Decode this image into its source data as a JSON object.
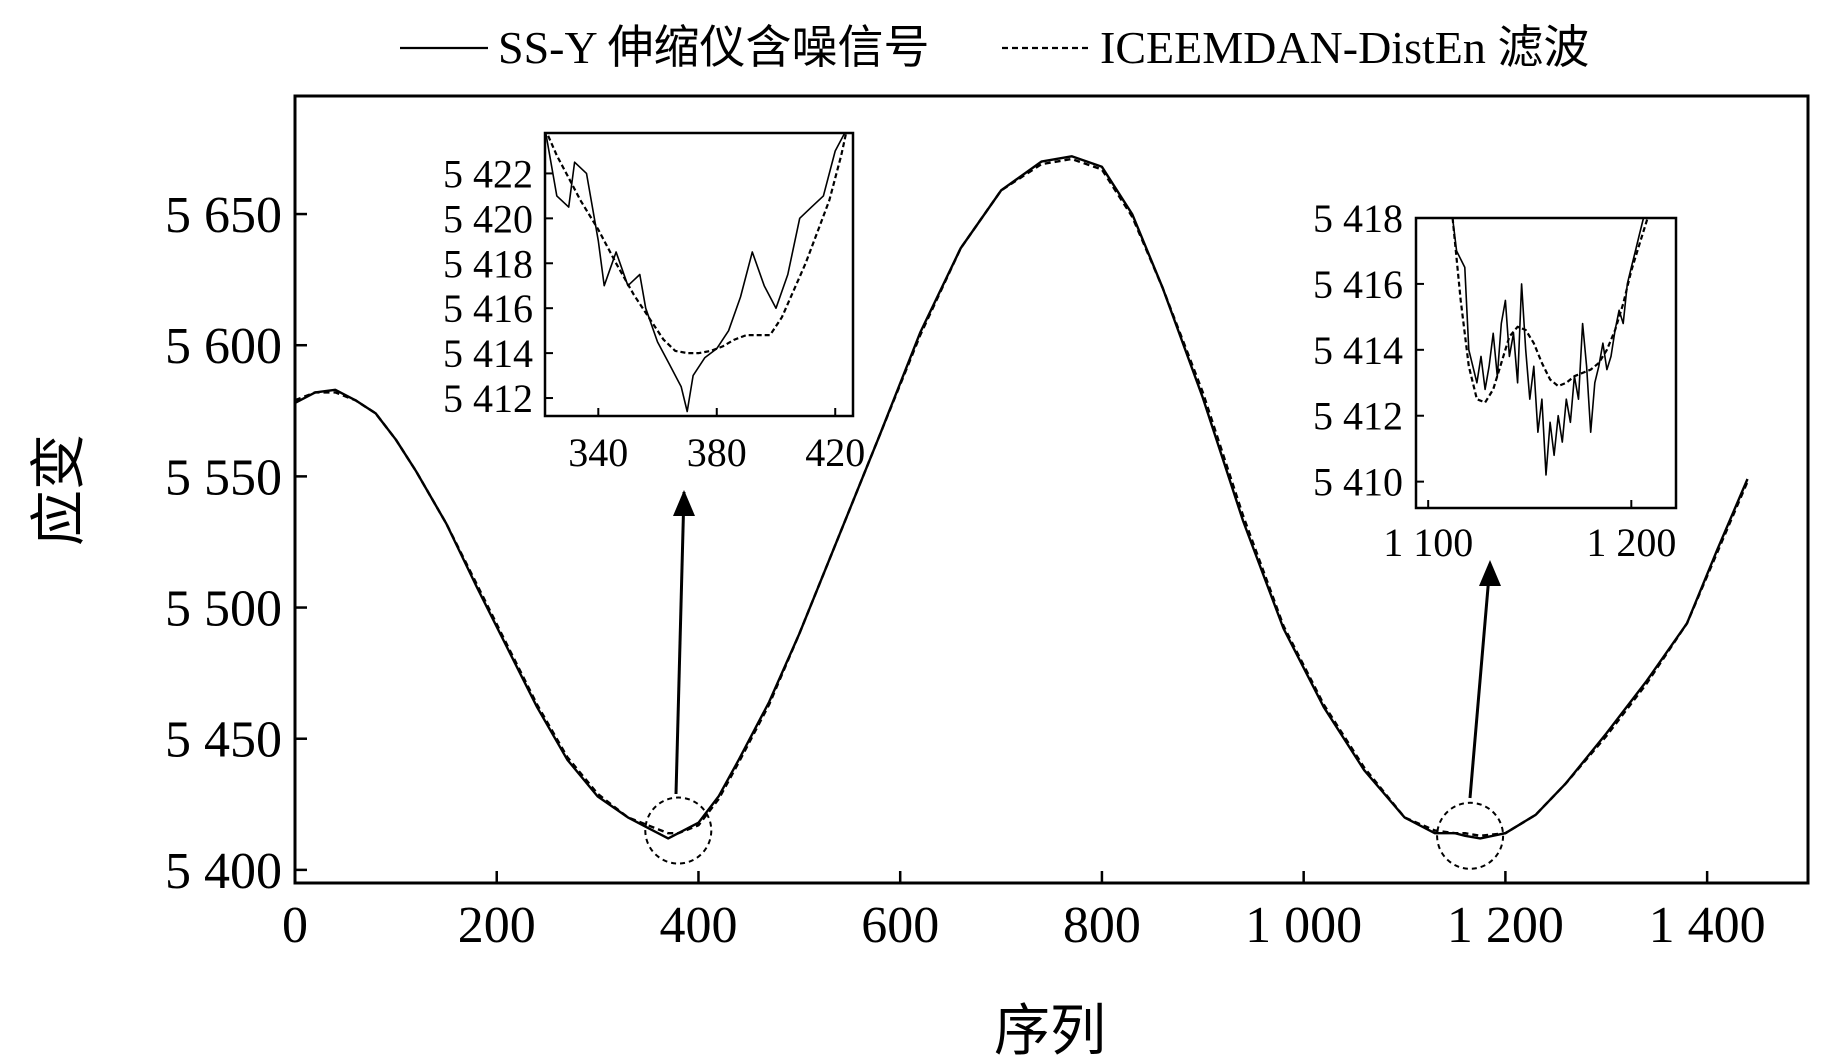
{
  "chart_data": {
    "type": "line",
    "xlabel": "序列",
    "ylabel": "应变",
    "xlim": [
      0,
      1500
    ],
    "ylim": [
      5395,
      5695
    ],
    "xticks": [
      0,
      200,
      400,
      600,
      800,
      1000,
      1200,
      1400
    ],
    "xtick_labels": [
      "0",
      "200",
      "400",
      "600",
      "800",
      "1 000",
      "1 200",
      "1 400"
    ],
    "yticks": [
      5400,
      5450,
      5500,
      5550,
      5600,
      5650
    ],
    "ytick_labels": [
      "5 400",
      "5 450",
      "5 500",
      "5 550",
      "5 600",
      "5 650"
    ],
    "grid": false,
    "legend_position": "top-center",
    "series": [
      {
        "name": "SS-Y 伸缩仪含噪信号",
        "style": "solid",
        "x": [
          0,
          20,
          40,
          60,
          80,
          100,
          120,
          150,
          180,
          210,
          240,
          270,
          300,
          330,
          350,
          370,
          380,
          400,
          420,
          440,
          470,
          500,
          540,
          580,
          620,
          660,
          700,
          740,
          770,
          800,
          830,
          860,
          900,
          940,
          980,
          1020,
          1060,
          1100,
          1130,
          1150,
          1160,
          1175,
          1200,
          1230,
          1260,
          1300,
          1340,
          1380,
          1410,
          1440
        ],
        "y": [
          5578,
          5582,
          5583,
          5579,
          5574,
          5564,
          5552,
          5532,
          5508,
          5485,
          5462,
          5442,
          5428,
          5420,
          5416,
          5412,
          5414,
          5418,
          5428,
          5442,
          5464,
          5490,
          5528,
          5566,
          5605,
          5637,
          5659,
          5670,
          5672,
          5668,
          5650,
          5622,
          5580,
          5533,
          5492,
          5462,
          5438,
          5420,
          5414,
          5414,
          5413,
          5412,
          5414,
          5421,
          5433,
          5452,
          5472,
          5494,
          5522,
          5549
        ]
      },
      {
        "name": "ICEEMDAN-DistEn 滤波",
        "style": "dashed",
        "x": [
          0,
          20,
          40,
          60,
          80,
          100,
          120,
          150,
          180,
          210,
          240,
          270,
          300,
          330,
          350,
          370,
          380,
          400,
          420,
          440,
          470,
          500,
          540,
          580,
          620,
          660,
          700,
          740,
          770,
          800,
          830,
          860,
          900,
          940,
          980,
          1020,
          1060,
          1100,
          1130,
          1150,
          1160,
          1175,
          1200,
          1230,
          1260,
          1300,
          1340,
          1380,
          1410,
          1440
        ],
        "y": [
          5579,
          5582,
          5582,
          5579,
          5574,
          5564,
          5552,
          5532,
          5509,
          5486,
          5463,
          5443,
          5429,
          5420,
          5417,
          5414,
          5414,
          5417,
          5427,
          5441,
          5463,
          5490,
          5528,
          5566,
          5604,
          5637,
          5659,
          5669,
          5671,
          5667,
          5649,
          5622,
          5582,
          5535,
          5493,
          5463,
          5439,
          5420,
          5415,
          5414,
          5414,
          5413,
          5414,
          5421,
          5433,
          5451,
          5471,
          5494,
          5521,
          5548
        ]
      }
    ],
    "highlight_regions": [
      {
        "cx": 380,
        "cy": 5415
      },
      {
        "cx": 1165,
        "cy": 5413
      }
    ],
    "insets": [
      {
        "name": "inset-left",
        "xlim": [
          322,
          426
        ],
        "ylim": [
          5411.2,
          5423.8
        ],
        "xticks": [
          340,
          380,
          420
        ],
        "xtick_labels": [
          "340",
          "380",
          "420"
        ],
        "yticks": [
          5412,
          5414,
          5416,
          5418,
          5420,
          5422
        ],
        "ytick_labels": [
          "5 412",
          "5 414",
          "5 416",
          "5 418",
          "5 420",
          "5 422"
        ],
        "series": [
          {
            "name": "SS-Y 伸缩仪含噪信号",
            "style": "solid",
            "x": [
              322,
              326,
              330,
              332,
              336,
              340,
              342,
              346,
              350,
              354,
              356,
              360,
              364,
              368,
              370,
              372,
              376,
              380,
              384,
              388,
              392,
              396,
              400,
              404,
              408,
              412,
              416,
              420,
              424
            ],
            "y": [
              5424.0,
              5421.0,
              5420.5,
              5422.5,
              5422.0,
              5419.0,
              5417.0,
              5418.5,
              5417.0,
              5417.5,
              5416.0,
              5414.5,
              5413.5,
              5412.5,
              5411.4,
              5413.0,
              5413.8,
              5414.2,
              5415.0,
              5416.5,
              5418.5,
              5417.0,
              5416.0,
              5417.5,
              5420.0,
              5420.5,
              5421.0,
              5423.0,
              5424.0
            ]
          },
          {
            "name": "ICEEMDAN-DistEn 滤波",
            "style": "dashed",
            "x": [
              322,
              326,
              330,
              334,
              340,
              346,
              352,
              358,
              362,
              366,
              370,
              374,
              378,
              382,
              386,
              390,
              394,
              398,
              402,
              406,
              410,
              414,
              418,
              422,
              424
            ],
            "y": [
              5424.0,
              5422.8,
              5421.8,
              5420.8,
              5419.5,
              5418.0,
              5416.6,
              5415.4,
              5414.6,
              5414.1,
              5414.0,
              5414.0,
              5414.1,
              5414.3,
              5414.6,
              5414.8,
              5414.8,
              5414.8,
              5415.6,
              5416.8,
              5418.0,
              5419.4,
              5420.8,
              5422.8,
              5424.0
            ]
          }
        ]
      },
      {
        "name": "inset-right",
        "xlim": [
          1094,
          1222
        ],
        "ylim": [
          5409.2,
          5418.0
        ],
        "xticks": [
          1100,
          1200
        ],
        "xtick_labels": [
          "1 100",
          "1 200"
        ],
        "yticks": [
          5410,
          5412,
          5414,
          5416,
          5418
        ],
        "ytick_labels": [
          "5 410",
          "5 412",
          "5 414",
          "5 416",
          "5 418"
        ],
        "series": [
          {
            "name": "SS-Y 伸缩仪含噪信号",
            "style": "solid",
            "x": [
              1112,
              1114,
              1118,
              1120,
              1124,
              1126,
              1128,
              1130,
              1132,
              1134,
              1136,
              1138,
              1140,
              1142,
              1144,
              1146,
              1148,
              1150,
              1152,
              1154,
              1156,
              1158,
              1160,
              1162,
              1164,
              1166,
              1168,
              1170,
              1172,
              1174,
              1176,
              1178,
              1180,
              1182,
              1184,
              1186,
              1188,
              1190,
              1192,
              1194,
              1196,
              1198,
              1200,
              1202,
              1204,
              1206,
              1208
            ],
            "y": [
              5418.0,
              5417.0,
              5416.5,
              5414.0,
              5413.0,
              5413.8,
              5412.8,
              5413.5,
              5414.5,
              5413.2,
              5414.8,
              5415.5,
              5413.8,
              5414.5,
              5413.0,
              5416.0,
              5414.0,
              5412.5,
              5413.5,
              5411.5,
              5412.5,
              5410.2,
              5411.8,
              5410.8,
              5412.0,
              5411.2,
              5412.5,
              5411.8,
              5413.2,
              5412.5,
              5414.8,
              5413.5,
              5411.5,
              5413.0,
              5413.5,
              5414.2,
              5413.4,
              5413.8,
              5414.6,
              5415.2,
              5414.8,
              5416.0,
              5416.5,
              5417.0,
              5417.5,
              5418.0,
              5418.0
            ]
          },
          {
            "name": "ICEEMDAN-DistEn 滤波",
            "style": "dashed",
            "x": [
              1112,
              1116,
              1120,
              1124,
              1128,
              1132,
              1136,
              1140,
              1144,
              1148,
              1152,
              1156,
              1160,
              1164,
              1168,
              1172,
              1176,
              1180,
              1184,
              1188,
              1192,
              1196,
              1200,
              1204,
              1208
            ],
            "y": [
              5418.0,
              5415.5,
              5413.5,
              5412.5,
              5412.4,
              5412.8,
              5413.6,
              5414.4,
              5414.7,
              5414.6,
              5414.2,
              5413.6,
              5413.1,
              5412.9,
              5413.0,
              5413.2,
              5413.3,
              5413.4,
              5413.6,
              5414.0,
              5414.6,
              5415.4,
              5416.4,
              5417.2,
              5418.0
            ]
          }
        ]
      }
    ]
  }
}
